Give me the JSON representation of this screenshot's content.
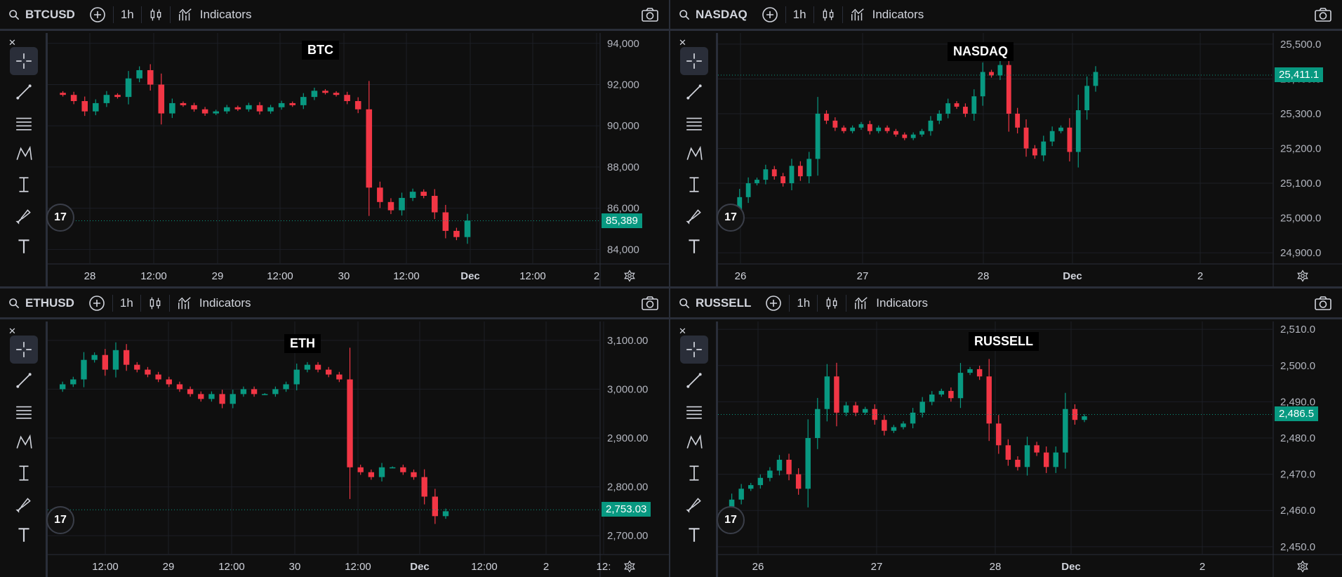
{
  "colors": {
    "up": "#089981",
    "down": "#f23645",
    "bg": "#0f0f0f"
  },
  "toolbar_icons": [
    "crosshair-icon",
    "trend-line-icon",
    "fib-icon",
    "pattern-icon",
    "measure-icon",
    "brush-icon",
    "text-icon"
  ],
  "panels": [
    {
      "symbol": "BTCUSD",
      "interval": "1h",
      "indicators": "Indicators",
      "title": "BTC",
      "last_price": "85,389",
      "y_ticks": [
        "94,000",
        "92,000",
        "90,000",
        "88,000",
        "86,000",
        "84,000"
      ],
      "x_ticks": [
        "28",
        "12:00",
        "29",
        "12:00",
        "30",
        "12:00",
        "Dec",
        "12:00",
        "2"
      ],
      "chart_data": {
        "type": "candlestick",
        "ylim": [
          83500,
          94300
        ],
        "last": 85389,
        "path": [
          91600,
          91500,
          91200,
          90700,
          91100,
          91500,
          91400,
          92300,
          92700,
          92000,
          90600,
          91100,
          91000,
          90800,
          90600,
          90700,
          90900,
          90800,
          91000,
          90700,
          90900,
          91100,
          91000,
          91400,
          91700,
          91600,
          91500,
          91200,
          90800,
          87000,
          86300,
          85900,
          86500,
          86800,
          86600,
          85800,
          84900,
          84600,
          85400
        ]
      }
    },
    {
      "symbol": "NASDAQ",
      "interval": "1h",
      "indicators": "Indicators",
      "title": "NASDAQ",
      "last_price": "25,411.1",
      "y_ticks": [
        "25,500.0",
        "25,400.0",
        "25,300.0",
        "25,200.0",
        "25,100.0",
        "25,000.0",
        "24,900.0"
      ],
      "x_ticks": [
        "26",
        "27",
        "28",
        "Dec",
        "2"
      ],
      "chart_data": {
        "type": "candlestick",
        "ylim": [
          24880,
          25520
        ],
        "last": 25411.1,
        "path": [
          24990,
          25000,
          25060,
          25100,
          25110,
          25140,
          25120,
          25100,
          25150,
          25120,
          25170,
          25300,
          25280,
          25260,
          25250,
          25260,
          25270,
          25250,
          25260,
          25250,
          25240,
          25230,
          25240,
          25250,
          25280,
          25300,
          25330,
          25320,
          25300,
          25350,
          25420,
          25410,
          25440,
          25300,
          25260,
          25200,
          25180,
          25220,
          25250,
          25260,
          25190,
          25310,
          25380,
          25420
        ]
      }
    },
    {
      "symbol": "ETHUSD",
      "interval": "1h",
      "indicators": "Indicators",
      "title": "ETH",
      "last_price": "2,753.03",
      "y_ticks": [
        "3,100.00",
        "3,000.00",
        "2,900.00",
        "2,800.00",
        "2,700.00"
      ],
      "x_ticks": [
        "12:00",
        "29",
        "12:00",
        "30",
        "12:00",
        "Dec",
        "12:00",
        "2",
        "12:"
      ],
      "chart_data": {
        "type": "candlestick",
        "ylim": [
          2670,
          3130
        ],
        "last": 2753.03,
        "path": [
          3000,
          3010,
          3020,
          3060,
          3070,
          3040,
          3080,
          3050,
          3040,
          3030,
          3020,
          3010,
          3000,
          2990,
          2980,
          2990,
          2970,
          2990,
          3000,
          2990,
          2990,
          3000,
          3010,
          3040,
          3050,
          3040,
          3030,
          3020,
          2840,
          2830,
          2820,
          2840,
          2840,
          2830,
          2820,
          2780,
          2740,
          2750
        ]
      }
    },
    {
      "symbol": "RUSSELL",
      "interval": "1h",
      "indicators": "Indicators",
      "title": "RUSSELL",
      "last_price": "2,486.5",
      "y_ticks": [
        "2,510.0",
        "2,500.0",
        "2,490.0",
        "2,480.0",
        "2,470.0",
        "2,460.0",
        "2,450.0"
      ],
      "x_ticks": [
        "26",
        "27",
        "28",
        "Dec",
        "2"
      ],
      "chart_data": {
        "type": "candlestick",
        "ylim": [
          2449,
          2511
        ],
        "last": 2486.5,
        "path": [
          2459,
          2463,
          2466,
          2467,
          2469,
          2471,
          2474,
          2470,
          2466,
          2480,
          2488,
          2497,
          2487,
          2489,
          2487,
          2488,
          2485,
          2482,
          2483,
          2484,
          2487,
          2490,
          2492,
          2493,
          2491,
          2498,
          2499,
          2497,
          2484,
          2478,
          2474,
          2472,
          2478,
          2476,
          2472,
          2476,
          2488,
          2485,
          2486
        ]
      }
    }
  ]
}
